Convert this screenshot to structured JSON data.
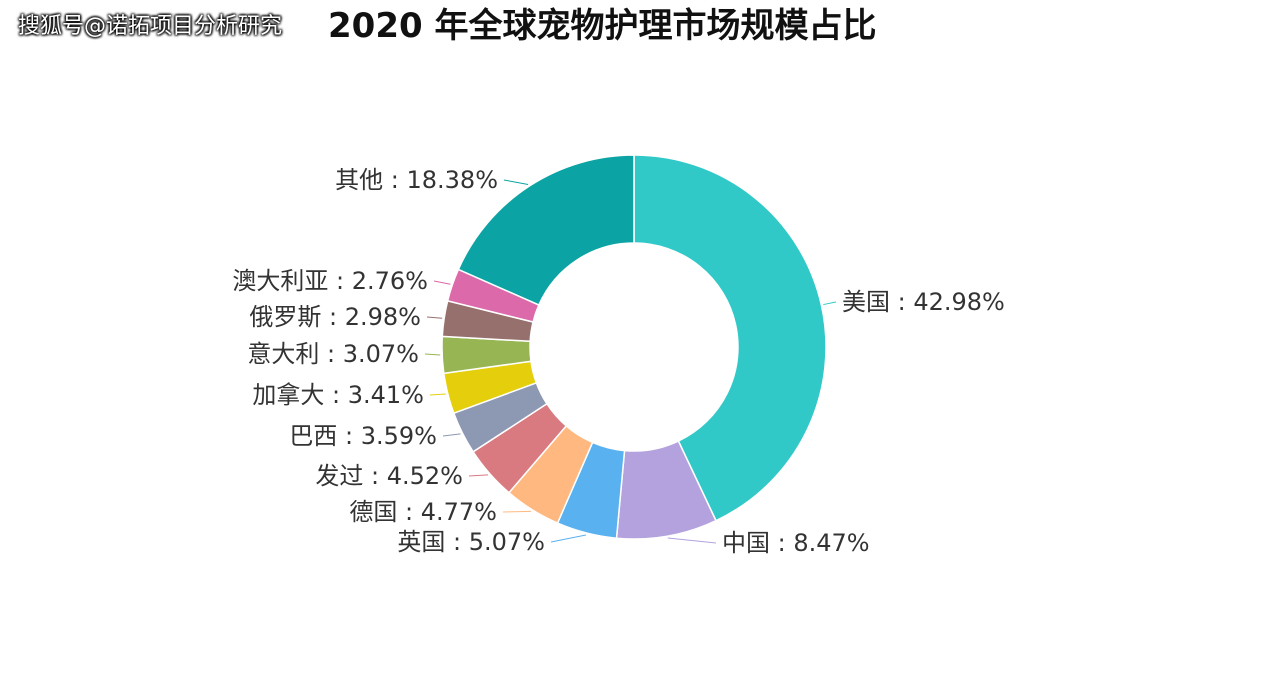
{
  "watermark": "搜狐号@诺拓项目分析研究",
  "chart_data": {
    "type": "pie",
    "style": "donut",
    "title": "2020 年全球宠物护理市场规模占比",
    "unit": "%",
    "slices": [
      {
        "name": "美国",
        "value": 42.98,
        "label": "美国 : 42.98%",
        "color": "#31c8c8"
      },
      {
        "name": "中国",
        "value": 8.47,
        "label": "中国 : 8.47%",
        "color": "#b3a2dd"
      },
      {
        "name": "英国",
        "value": 5.07,
        "label": "英国 : 5.07%",
        "color": "#5ab1ef"
      },
      {
        "name": "德国",
        "value": 4.77,
        "label": "德国 : 4.77%",
        "color": "#ffb980"
      },
      {
        "name": "发过",
        "value": 4.52,
        "label": "发过 : 4.52%",
        "color": "#d87a80"
      },
      {
        "name": "巴西",
        "value": 3.59,
        "label": "巴西 : 3.59%",
        "color": "#8d98b3"
      },
      {
        "name": "加拿大",
        "value": 3.41,
        "label": "加拿大 : 3.41%",
        "color": "#e5cf0d"
      },
      {
        "name": "意大利",
        "value": 3.07,
        "label": "意大利 : 3.07%",
        "color": "#97b552"
      },
      {
        "name": "俄罗斯",
        "value": 2.98,
        "label": "俄罗斯 : 2.98%",
        "color": "#95706d"
      },
      {
        "name": "澳大利亚",
        "value": 2.76,
        "label": "澳大利亚 : 2.76%",
        "color": "#dc69aa"
      },
      {
        "name": "其他",
        "value": 18.38,
        "label": "其他 : 18.38%",
        "color": "#0ba3a3"
      }
    ]
  }
}
